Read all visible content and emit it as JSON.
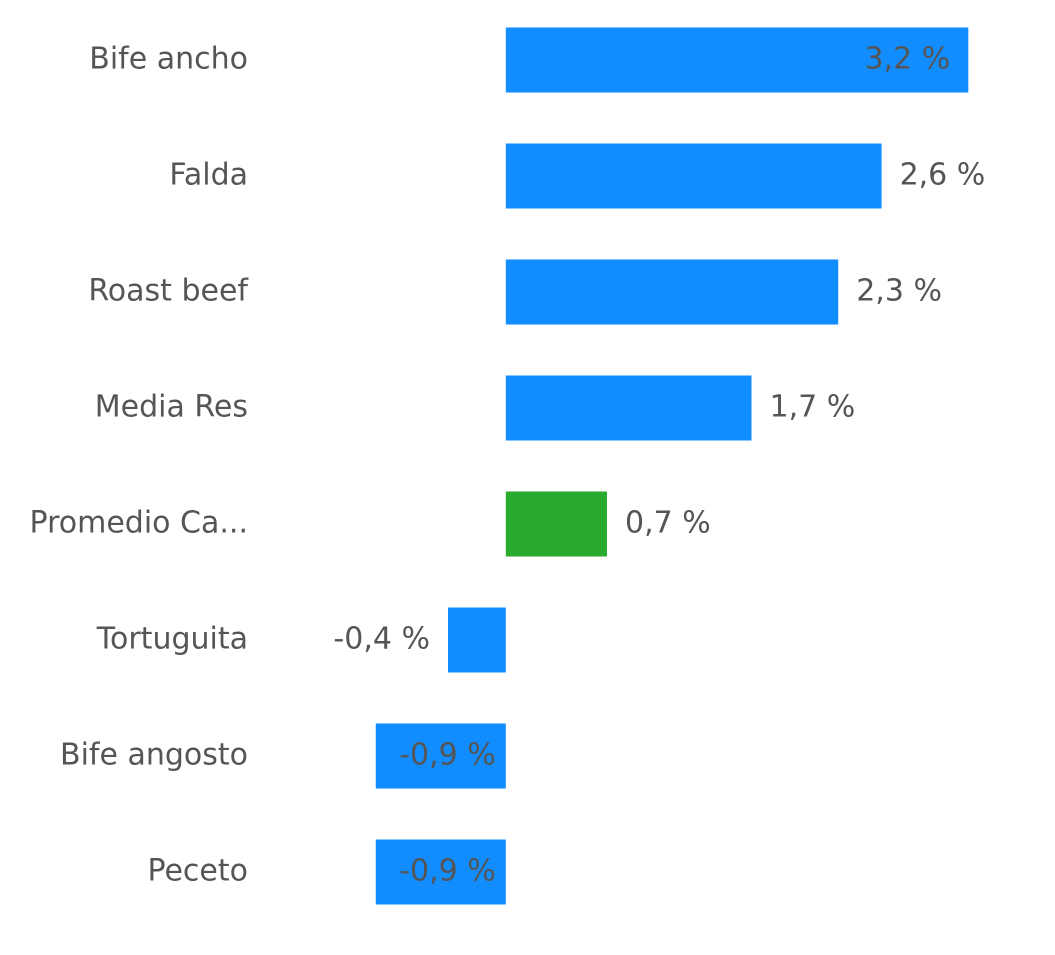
{
  "chart_data": {
    "type": "bar",
    "orientation": "horizontal",
    "categories": [
      "Bife ancho",
      "Falda",
      "Roast beef",
      "Media Res",
      "Promedio Ca...",
      "Tortuguita",
      "Bife angosto",
      "Peceto"
    ],
    "values": [
      3.2,
      2.6,
      2.3,
      1.7,
      0.7,
      -0.4,
      -0.9,
      -0.9
    ],
    "value_labels": [
      "3,2 %",
      "2,6 %",
      "2,3 %",
      "1,7 %",
      "0,7 %",
      "-0,4 %",
      "-0,9 %",
      "-0,9 %"
    ],
    "colors": [
      "#118dff",
      "#118dff",
      "#118dff",
      "#118dff",
      "#2aaa2f",
      "#118dff",
      "#118dff",
      "#118dff"
    ],
    "xlim": [
      -3.5,
      3.8
    ]
  }
}
